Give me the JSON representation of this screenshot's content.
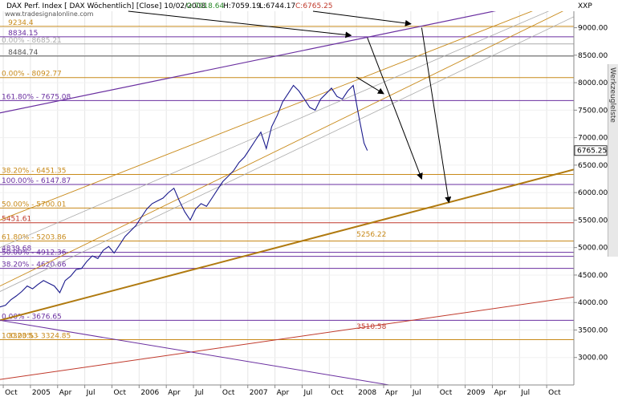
{
  "header": {
    "title": "DAX Perf. Index [ DAX Wöchentlich] [Close] 10/02/2008",
    "open": "O:7018.64",
    "high": "H:7059.19",
    "low": "L:6744.17",
    "close": "C:6765.25",
    "source": "www.tradesignalonline.com",
    "symbol": "XXP"
  },
  "side_tab_label": "WerkzeugleIste",
  "price_box": "6765.25",
  "colors": {
    "price": "#1a1a8c",
    "purple": "#6a2fa0",
    "orange": "#c88a1a",
    "red": "#c0392b",
    "gray": "#aaaaaa"
  },
  "chart_data": {
    "type": "line",
    "title": "DAX Perf. Index [ DAX Wöchentlich] [Close] 10/02/2008",
    "xlabel": "",
    "ylabel": "",
    "ylim": [
      2500,
      9300
    ],
    "xlim": [
      2004.72,
      2010.0
    ],
    "x_ticks": [
      {
        "x": 2004.75,
        "label": "Oct"
      },
      {
        "x": 2005.0,
        "label": "2005"
      },
      {
        "x": 2005.25,
        "label": "Apr"
      },
      {
        "x": 2005.5,
        "label": "Jul"
      },
      {
        "x": 2005.75,
        "label": "Oct"
      },
      {
        "x": 2006.0,
        "label": "2006"
      },
      {
        "x": 2006.25,
        "label": "Apr"
      },
      {
        "x": 2006.5,
        "label": "Jul"
      },
      {
        "x": 2006.75,
        "label": "Oct"
      },
      {
        "x": 2007.0,
        "label": "2007"
      },
      {
        "x": 2007.25,
        "label": "Apr"
      },
      {
        "x": 2007.5,
        "label": "Jul"
      },
      {
        "x": 2007.75,
        "label": "Oct"
      },
      {
        "x": 2008.0,
        "label": "2008"
      },
      {
        "x": 2008.25,
        "label": "Apr"
      },
      {
        "x": 2008.5,
        "label": "Jul"
      },
      {
        "x": 2008.75,
        "label": "Oct"
      },
      {
        "x": 2009.0,
        "label": "2009"
      },
      {
        "x": 2009.25,
        "label": "Apr"
      },
      {
        "x": 2009.5,
        "label": "Jul"
      },
      {
        "x": 2009.75,
        "label": "Oct"
      }
    ],
    "y_ticks": [
      3000,
      3500,
      4000,
      4500,
      5000,
      5500,
      6000,
      6500,
      7000,
      7500,
      8000,
      8500,
      9000
    ],
    "y_tick_labels": [
      "3000.00",
      "3500.00",
      "4000.00",
      "4500.00",
      "5000.00",
      "5500.00",
      "6000.00",
      "6500.00",
      "7000.00",
      "7500.00",
      "8000.00",
      "8500.00",
      "9000.00"
    ],
    "series": [
      {
        "x": [
          2004.72,
          2004.77,
          2004.82,
          2004.87,
          2004.92,
          2004.97,
          2005.02,
          2005.07,
          2005.12,
          2005.17,
          2005.22,
          2005.27,
          2005.32,
          2005.37,
          2005.42,
          2005.47,
          2005.52,
          2005.57,
          2005.62,
          2005.67,
          2005.72,
          2005.77,
          2005.82,
          2005.87,
          2005.92,
          2005.97,
          2006.02,
          2006.07,
          2006.12,
          2006.17,
          2006.22,
          2006.27,
          2006.32,
          2006.37,
          2006.42,
          2006.47,
          2006.52,
          2006.57,
          2006.62,
          2006.67,
          2006.72,
          2006.77,
          2006.82,
          2006.87,
          2006.92,
          2006.97,
          2007.02,
          2007.07,
          2007.12,
          2007.17,
          2007.22,
          2007.27,
          2007.32,
          2007.37,
          2007.42,
          2007.47,
          2007.52,
          2007.57,
          2007.62,
          2007.67,
          2007.72,
          2007.77,
          2007.82,
          2007.87,
          2007.92,
          2007.97,
          2008.02,
          2008.07,
          2008.1
        ],
        "values": [
          3920,
          3950,
          4050,
          4120,
          4200,
          4300,
          4250,
          4330,
          4400,
          4350,
          4300,
          4180,
          4400,
          4480,
          4600,
          4620,
          4750,
          4850,
          4800,
          4950,
          5020,
          4900,
          5050,
          5200,
          5300,
          5400,
          5550,
          5700,
          5800,
          5850,
          5900,
          6000,
          6080,
          5850,
          5650,
          5500,
          5700,
          5800,
          5750,
          5900,
          6050,
          6200,
          6300,
          6400,
          6550,
          6650,
          6800,
          6950,
          7100,
          6800,
          7200,
          7400,
          7650,
          7800,
          7950,
          7850,
          7700,
          7550,
          7500,
          7700,
          7800,
          7900,
          7750,
          7700,
          7850,
          7950,
          7400,
          6900,
          6765
        ]
      }
    ],
    "levels": [
      {
        "y": 9025,
        "color": "#c88a1a",
        "labels": [
          {
            "x": 2004.78,
            "text": "9234.4"
          }
        ]
      },
      {
        "y": 8834.15,
        "color": "#6a2fa0",
        "labels": [
          {
            "x": 2004.78,
            "text": "8834.15"
          }
        ]
      },
      {
        "y": 8705,
        "color": "#aaaaaa",
        "labels": [
          {
            "x": 2004.72,
            "text": "0.00% - 8685.21"
          }
        ]
      },
      {
        "y": 8484.74,
        "color": "#555555",
        "labels": [
          {
            "x": 2004.78,
            "text": "8484.74"
          }
        ]
      },
      {
        "y": 8092.77,
        "color": "#c88a1a",
        "labels": [
          {
            "x": 2004.72,
            "text": "0.00% - 8092.77"
          }
        ]
      },
      {
        "y": 7675.08,
        "color": "#6a2fa0",
        "labels": [
          {
            "x": 2004.72,
            "text": "161.80% - 7675.08"
          }
        ]
      },
      {
        "y": 6330,
        "color": "#c88a1a",
        "labels": [
          {
            "x": 2004.72,
            "text": "38.20% - 6451.35"
          }
        ]
      },
      {
        "y": 6147.87,
        "color": "#6a2fa0",
        "labels": [
          {
            "x": 2004.72,
            "text": "100.00% - 6147.87"
          }
        ]
      },
      {
        "y": 5720,
        "color": "#c88a1a",
        "labels": [
          {
            "x": 2004.72,
            "text": "50.00% - 5700.01"
          }
        ]
      },
      {
        "y": 5451.61,
        "color": "#c0392b",
        "labels": [
          {
            "x": 2004.72,
            "text": "5451.61"
          }
        ]
      },
      {
        "y": 5120,
        "color": "#c88a1a",
        "labels": [
          {
            "x": 2004.72,
            "text": "61.80% - 5203.86"
          }
        ]
      },
      {
        "y": 4912.36,
        "color": "#6a2fa0",
        "labels": [
          {
            "x": 2004.72,
            "text": "4839.68"
          }
        ]
      },
      {
        "y": 4840,
        "color": "#6a2fa0",
        "labels": [
          {
            "x": 2004.72,
            "text": "50.00% - 4912.36"
          }
        ]
      },
      {
        "y": 4620.66,
        "color": "#6a2fa0",
        "labels": [
          {
            "x": 2004.72,
            "text": "38.20% - 4620.66"
          }
        ]
      },
      {
        "y": 3676.65,
        "color": "#6a2fa0",
        "labels": [
          {
            "x": 2004.72,
            "text": "0.00% - 3676.65"
          }
        ]
      },
      {
        "y": 3324.85,
        "color": "#c88a1a",
        "labels": [
          {
            "x": 2004.78,
            "text": "3323.53"
          },
          {
            "x": 2004.72,
            "text": "100.00% - 3324.85"
          }
        ]
      }
    ],
    "annotations": [
      {
        "x": 2008.0,
        "y": 5200,
        "text": "5256.22",
        "color": "#c88a1a"
      },
      {
        "x": 2008.0,
        "y": 3520,
        "text": "3510.58",
        "color": "#c0392b"
      }
    ],
    "trendlines": [
      {
        "color": "#6a2fa0",
        "width": 1.2,
        "from": [
          2004.72,
          7450
        ],
        "to": [
          2010.0,
          9600
        ]
      },
      {
        "color": "#c88a1a",
        "width": 0.9,
        "from": [
          2004.72,
          5500
        ],
        "to": [
          2010.0,
          9600
        ]
      },
      {
        "color": "#c88a1a",
        "width": 0.9,
        "from": [
          2004.72,
          4300
        ],
        "to": [
          2010.0,
          9400
        ]
      },
      {
        "color": "#aaaaaa",
        "width": 0.8,
        "from": [
          2004.72,
          5000
        ],
        "to": [
          2010.0,
          9500
        ]
      },
      {
        "color": "#aaaaaa",
        "width": 0.8,
        "from": [
          2004.72,
          4200
        ],
        "to": [
          2010.0,
          9200
        ]
      },
      {
        "color": "#b07a10",
        "width": 2.0,
        "from": [
          2004.72,
          3676
        ],
        "to": [
          2010.0,
          6420
        ]
      },
      {
        "color": "#c0392b",
        "width": 1.0,
        "from": [
          2004.72,
          2600
        ],
        "to": [
          2010.0,
          4100
        ]
      },
      {
        "color": "#6a2fa0",
        "width": 1.0,
        "from": [
          2004.72,
          3676
        ],
        "to": [
          2008.3,
          2500
        ]
      }
    ],
    "arrows": [
      {
        "from": [
          2005.9,
          9300
        ],
        "to": [
          2007.95,
          8860
        ]
      },
      {
        "from": [
          2007.6,
          9300
        ],
        "to": [
          2008.5,
          9070
        ]
      },
      {
        "from": [
          2008.1,
          8820
        ],
        "to": [
          2008.6,
          6250
        ]
      },
      {
        "from": [
          2008.0,
          8100
        ],
        "to": [
          2008.25,
          7800
        ]
      },
      {
        "from": [
          2008.6,
          9000
        ],
        "to": [
          2008.85,
          5820
        ]
      }
    ]
  }
}
